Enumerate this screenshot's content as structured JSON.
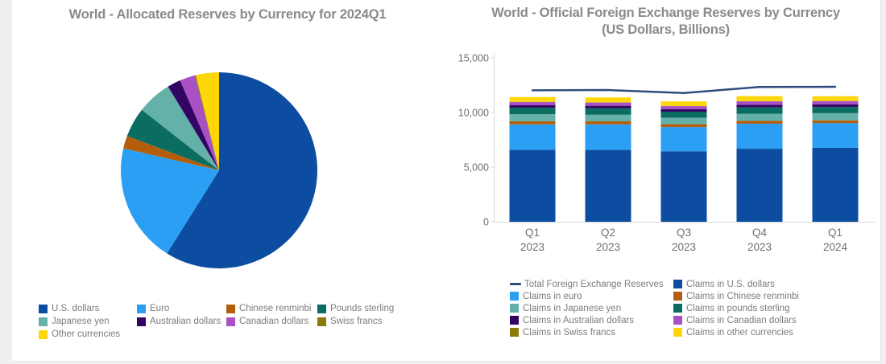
{
  "window": {
    "background_color": "#efefef",
    "card_background_color": "#ffffff"
  },
  "theme": {
    "title_color": "#8a8a8a",
    "legend_text_color": "#7c7c7c",
    "axis_text_color": "#6f6f6f",
    "axis_line_color": "#d9d9d9"
  },
  "chart_data": [
    {
      "type": "pie",
      "title": "World - Allocated Reserves by Currency for 2024Q1",
      "unit": "percent share of allocated reserves (estimated from slice angles)",
      "legend_position": "bottom-left",
      "slices": [
        {
          "label": "U.S. dollars",
          "color": "#0d4da1",
          "value": 58.9
        },
        {
          "label": "Euro",
          "color": "#2b9ff4",
          "value": 19.7
        },
        {
          "label": "Chinese renminbi",
          "color": "#b45e0c",
          "value": 2.1
        },
        {
          "label": "Pounds sterling",
          "color": "#0b6c61",
          "value": 4.9
        },
        {
          "label": "Japanese yen",
          "color": "#63b1a8",
          "value": 5.7
        },
        {
          "label": "Australian dollars",
          "color": "#320563",
          "value": 2.2
        },
        {
          "label": "Canadian dollars",
          "color": "#a950c4",
          "value": 2.5
        },
        {
          "label": "Swiss francs",
          "color": "#8a7a06",
          "value": 0.2
        },
        {
          "label": "Other currencies",
          "color": "#ffd60a",
          "value": 3.8
        }
      ]
    },
    {
      "type": "stacked-bar+line",
      "title_lines": [
        "World - Official Foreign Exchange Reserves by Currency",
        "(US Dollars, Billions)"
      ],
      "title": "World - Official Foreign Exchange Reserves by Currency (US Dollars, Billions)",
      "ylim": [
        0,
        15000
      ],
      "y_ticks": [
        0,
        5000,
        10000,
        15000
      ],
      "y_tick_labels": [
        "0",
        "5,000",
        "10,000",
        "15,000"
      ],
      "grid": false,
      "legend_position": "bottom",
      "categories": [
        {
          "quarter": "Q1",
          "year": "2023"
        },
        {
          "quarter": "Q2",
          "year": "2023"
        },
        {
          "quarter": "Q3",
          "year": "2023"
        },
        {
          "quarter": "Q4",
          "year": "2023"
        },
        {
          "quarter": "Q1",
          "year": "2024"
        }
      ],
      "series": [
        {
          "name": "Claims in U.S. dollars",
          "color": "#0d4da1",
          "values": [
            6575,
            6575,
            6455,
            6685,
            6770
          ]
        },
        {
          "name": "Claims in euro",
          "color": "#2b9ff4",
          "values": [
            2335,
            2340,
            2215,
            2290,
            2265
          ]
        },
        {
          "name": "Claims in Chinese renminbi",
          "color": "#b45e0c",
          "values": [
            290,
            275,
            260,
            260,
            245
          ]
        },
        {
          "name": "Claims in Japanese yen",
          "color": "#63b1a8",
          "values": [
            650,
            605,
            595,
            640,
            660
          ]
        },
        {
          "name": "Claims in pounds sterling",
          "color": "#0b6c61",
          "values": [
            585,
            585,
            550,
            590,
            560
          ]
        },
        {
          "name": "Claims in Australian dollars",
          "color": "#320563",
          "values": [
            225,
            235,
            225,
            245,
            250
          ]
        },
        {
          "name": "Claims in Canadian dollars",
          "color": "#a950c4",
          "values": [
            290,
            295,
            280,
            310,
            285
          ]
        },
        {
          "name": "Claims in Swiss francs",
          "color": "#8a7a06",
          "values": [
            25,
            20,
            20,
            20,
            20
          ]
        },
        {
          "name": "Claims in other currencies",
          "color": "#ffd60a",
          "values": [
            440,
            450,
            415,
            460,
            435
          ]
        }
      ],
      "line_series": {
        "name": "Total Foreign Exchange Reserves",
        "color": "#2d4d7c",
        "values": [
          12035,
          12055,
          11785,
          12335,
          12350
        ]
      }
    }
  ]
}
